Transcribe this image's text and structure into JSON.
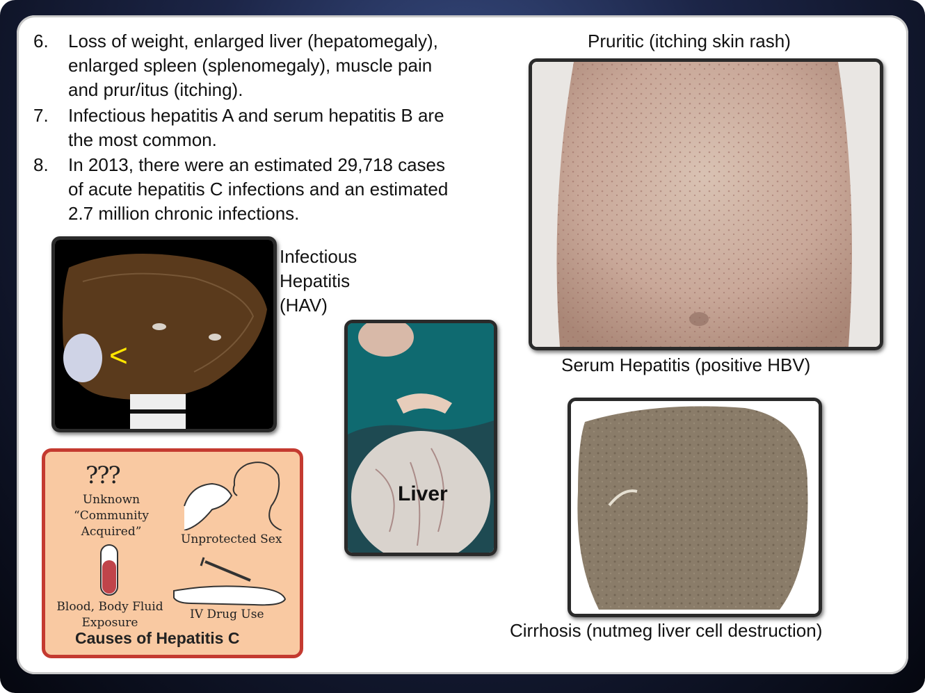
{
  "bullets": [
    {
      "num": "6.",
      "lines": [
        "Loss of weight, enlarged liver (hepatomegaly),",
        "enlarged spleen (splenomegaly), muscle pain",
        "and prur/itus (itching)."
      ]
    },
    {
      "num": "7.",
      "lines": [
        "Infectious hepatitis A and serum hepatitis B are",
        "the most common."
      ]
    },
    {
      "num": "8.",
      "lines": [
        "In 2013, there were an estimated 29,718 cases",
        "of acute hepatitis C infections and an estimated",
        "2.7 million chronic infections."
      ]
    }
  ],
  "captions": {
    "rash_top": "Pruritic (itching skin rash)",
    "rash_bottom": "Serum Hepatitis (positive HBV)",
    "hav_line1": "Infectious",
    "hav_line2": "Hepatitis",
    "hav_line3": "(HAV)",
    "liver_label": "Liver",
    "cirrhosis": "Cirrhosis (nutmeg liver cell destruction)",
    "hav_marker": "<"
  },
  "causes": {
    "title": "Causes of Hepatitis C",
    "marks": "???",
    "unknown": [
      "Unknown",
      "“Community",
      "Acquired”"
    ],
    "sex": "Unprotected Sex",
    "blood": [
      "Blood, Body Fluid",
      "Exposure"
    ],
    "drug": "IV Drug Use"
  },
  "colors": {
    "causes_bg": "#f9c9a2",
    "causes_border": "#c43a30",
    "marker": "#ffe600"
  }
}
